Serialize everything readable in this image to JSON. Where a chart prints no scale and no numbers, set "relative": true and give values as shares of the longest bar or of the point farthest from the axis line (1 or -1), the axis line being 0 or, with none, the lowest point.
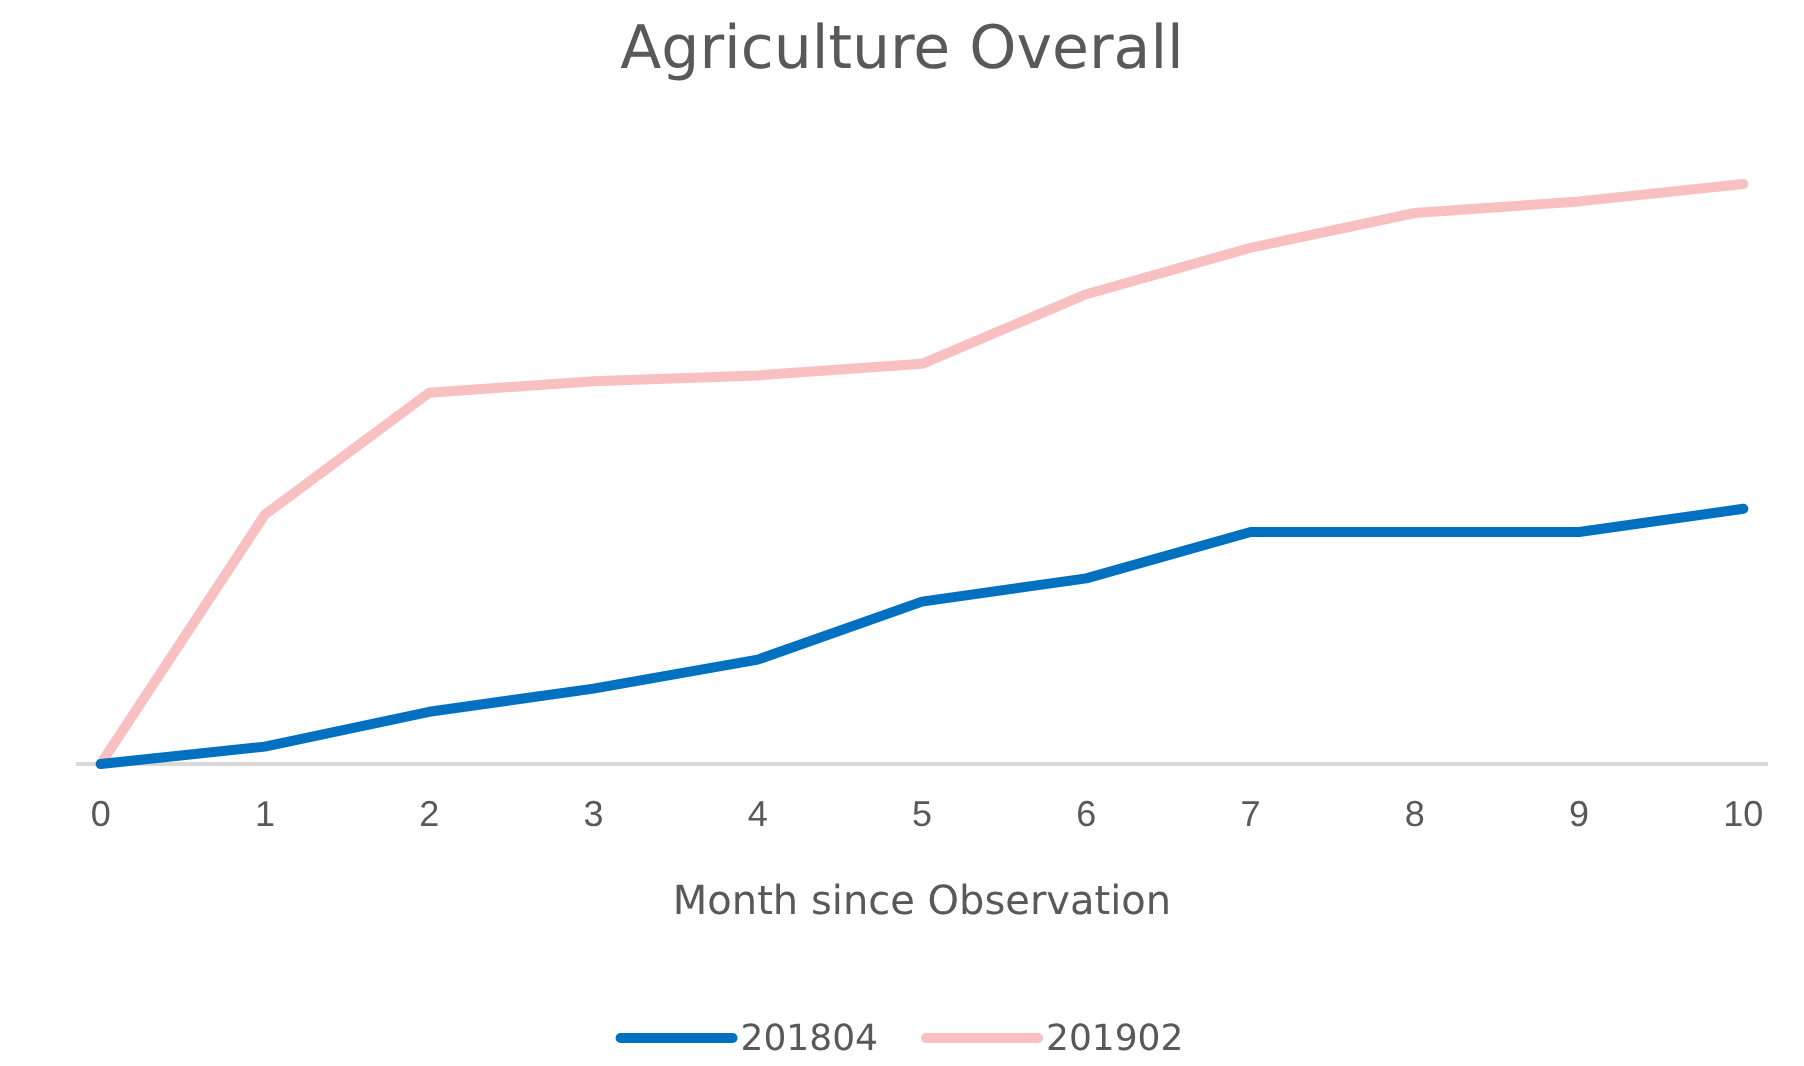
{
  "chart_data": {
    "type": "line",
    "title": "Agriculture Overall",
    "xlabel": "Month since Observation",
    "relative": true,
    "legend": "bottom",
    "x": [
      0,
      1,
      2,
      3,
      4,
      5,
      6,
      7,
      8,
      9,
      10
    ],
    "xlim": [
      -0.15,
      10.15
    ],
    "xticks": [
      0,
      1,
      2,
      3,
      4,
      5,
      6,
      7,
      8,
      9,
      10
    ],
    "series": [
      {
        "name": "201804",
        "color": "#0070c0",
        "values": [
          0,
          0.03,
          0.09,
          0.13,
          0.18,
          0.28,
          0.32,
          0.4,
          0.4,
          0.4,
          0.44
        ]
      },
      {
        "name": "201902",
        "color": "#f8c0c0",
        "values": [
          0,
          0.43,
          0.64,
          0.66,
          0.67,
          0.69,
          0.81,
          0.89,
          0.95,
          0.97,
          1
        ]
      }
    ]
  }
}
